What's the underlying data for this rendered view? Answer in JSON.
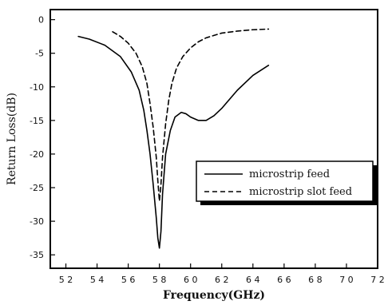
{
  "chart_data": {
    "type": "line",
    "title": "",
    "xlabel": "Frequency(GHz)",
    "ylabel": "Return Loss(dB)",
    "xlim": [
      5.1,
      7.2
    ],
    "ylim": [
      -37,
      1.5
    ],
    "xticks": [
      5.2,
      5.4,
      5.6,
      5.8,
      6.0,
      6.2,
      6.4,
      6.6,
      6.8,
      7.0,
      7.2
    ],
    "xtick_labels": [
      "5 2",
      "5 4",
      "5 6",
      "5 8",
      "6 0",
      "6 2",
      "6 4",
      "6 6",
      "6 8",
      "7 0",
      "7 2"
    ],
    "yticks": [
      0,
      -5,
      -10,
      -15,
      -20,
      -25,
      -30,
      -35
    ],
    "ytick_labels": [
      "0",
      "-5",
      "-10",
      "-15",
      "-20",
      "-25",
      "-30",
      "-35"
    ],
    "grid": false,
    "legend_position": "center-right",
    "series": [
      {
        "name": "microstrip feed",
        "style": "solid",
        "x": [
          5.28,
          5.35,
          5.45,
          5.55,
          5.62,
          5.67,
          5.7,
          5.72,
          5.74,
          5.76,
          5.78,
          5.79,
          5.8,
          5.81,
          5.82,
          5.84,
          5.87,
          5.9,
          5.94,
          5.97,
          6.0,
          6.05,
          6.1,
          6.15,
          6.2,
          6.3,
          6.4,
          6.5
        ],
        "y": [
          -2.5,
          -2.9,
          -3.8,
          -5.5,
          -7.8,
          -10.5,
          -13.5,
          -16.5,
          -20.0,
          -24.5,
          -29.5,
          -32.5,
          -34.0,
          -31.5,
          -26.0,
          -20.0,
          -16.5,
          -14.5,
          -13.8,
          -14.0,
          -14.5,
          -15.0,
          -15.0,
          -14.3,
          -13.2,
          -10.5,
          -8.3,
          -6.8
        ]
      },
      {
        "name": "microstrip slot feed",
        "style": "dashed",
        "x": [
          5.5,
          5.55,
          5.6,
          5.65,
          5.69,
          5.72,
          5.74,
          5.76,
          5.78,
          5.79,
          5.8,
          5.81,
          5.82,
          5.84,
          5.86,
          5.88,
          5.91,
          5.95,
          6.0,
          6.05,
          6.1,
          6.2,
          6.3,
          6.4,
          6.5
        ],
        "y": [
          -1.8,
          -2.5,
          -3.5,
          -5.0,
          -7.0,
          -9.5,
          -12.5,
          -16.0,
          -20.5,
          -24.0,
          -27.0,
          -24.5,
          -20.5,
          -15.5,
          -12.0,
          -9.5,
          -7.2,
          -5.5,
          -4.2,
          -3.3,
          -2.7,
          -2.0,
          -1.7,
          -1.5,
          -1.4
        ]
      }
    ]
  }
}
